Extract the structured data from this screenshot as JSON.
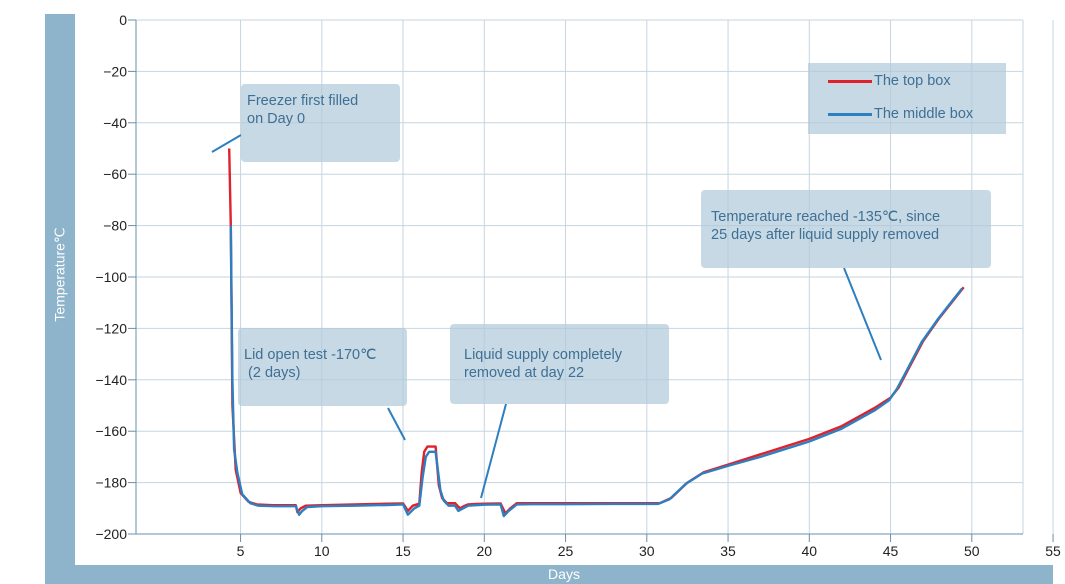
{
  "chart_data": {
    "type": "line",
    "title": "",
    "xlabel": "Days",
    "ylabel": "Temperature℃",
    "xlim": [
      0,
      55
    ],
    "ylim": [
      -200,
      0
    ],
    "xticks": [
      5,
      10,
      15,
      20,
      25,
      30,
      35,
      40,
      45,
      50,
      55
    ],
    "yticks": [
      0,
      -20,
      -40,
      -60,
      -80,
      -100,
      -120,
      -140,
      -160,
      -180,
      -200
    ],
    "grid": true,
    "legend_position": "top-right",
    "series": [
      {
        "name": "The top box",
        "color": "#e0202a",
        "x": [
          4.3,
          4.4,
          4.5,
          4.7,
          5.0,
          5.5,
          6.0,
          7.0,
          8.0,
          8.4,
          8.5,
          8.7,
          9.0,
          10.0,
          12.0,
          14.0,
          15.0,
          15.3,
          15.6,
          16.0,
          16.15,
          16.3,
          16.5,
          17.0,
          17.2,
          17.4,
          17.7,
          18.2,
          18.5,
          18.8,
          19.0,
          19.5,
          20.0,
          21.0,
          21.3,
          21.6,
          22.0,
          23.0,
          25.0,
          28.0,
          30.0,
          30.8,
          31.5,
          32.5,
          33.5,
          35.0,
          37.0,
          40.0,
          42.0,
          44.0,
          45.0,
          45.5,
          46.0,
          47.0,
          48.0,
          49.0,
          49.5
        ],
        "values": [
          -50,
          -80,
          -150,
          -175,
          -184,
          -187.5,
          -188.5,
          -188.8,
          -188.8,
          -188.8,
          -191.5,
          -190,
          -189,
          -188.8,
          -188.5,
          -188.2,
          -188.1,
          -191,
          -189,
          -188.2,
          -176,
          -168,
          -166,
          -166,
          -181,
          -186,
          -188,
          -188,
          -190,
          -189,
          -188.5,
          -188.3,
          -188.2,
          -188.1,
          -192,
          -190,
          -188,
          -188,
          -188,
          -188,
          -188,
          -188,
          -186,
          -180,
          -176,
          -173,
          -169,
          -163,
          -158,
          -151,
          -147,
          -143,
          -137,
          -125,
          -116,
          -108,
          -104
        ]
      },
      {
        "name": "The middle box",
        "color": "#2e7fc0",
        "x": [
          4.4,
          4.5,
          4.6,
          4.8,
          5.1,
          5.6,
          6.1,
          7.1,
          8.1,
          8.4,
          8.6,
          8.8,
          9.1,
          10.0,
          12.0,
          14.0,
          15.0,
          15.3,
          15.7,
          16.0,
          16.2,
          16.4,
          16.6,
          17.0,
          17.3,
          17.5,
          17.8,
          18.2,
          18.4,
          18.7,
          19.0,
          19.5,
          20.0,
          21.0,
          21.2,
          21.5,
          22.0,
          23.0,
          25.0,
          28.0,
          30.0,
          30.7,
          31.4,
          32.4,
          33.4,
          35.0,
          37.0,
          40.0,
          42.0,
          44.0,
          44.9,
          45.4,
          45.9,
          46.9,
          47.9,
          48.9,
          49.4
        ],
        "values": [
          -80,
          -140,
          -167,
          -176,
          -184.5,
          -188,
          -189,
          -189.2,
          -189.2,
          -189.2,
          -192.5,
          -191,
          -189.5,
          -189.2,
          -189,
          -188.7,
          -188.5,
          -192.5,
          -190,
          -189,
          -178,
          -170,
          -168,
          -168,
          -183,
          -187,
          -189,
          -189,
          -191,
          -190,
          -189,
          -188.8,
          -188.6,
          -188.5,
          -193,
          -191,
          -188.5,
          -188.4,
          -188.4,
          -188.3,
          -188.3,
          -188.3,
          -186.5,
          -180.5,
          -176.5,
          -173.5,
          -170,
          -164,
          -159,
          -152,
          -148,
          -143.5,
          -137.5,
          -125.5,
          -116.5,
          -108.5,
          -104.5
        ]
      }
    ],
    "annotations": [
      {
        "lines": [
          "Freezer first filled",
          "on Day 0"
        ]
      },
      {
        "lines": [
          "Lid open test -170℃",
          " (2 days)"
        ]
      },
      {
        "lines": [
          "Liquid supply completely",
          "removed at day 22"
        ]
      },
      {
        "lines": [
          "Temperature reached -135℃, since",
          "25 days after liquid supply removed"
        ]
      }
    ]
  }
}
